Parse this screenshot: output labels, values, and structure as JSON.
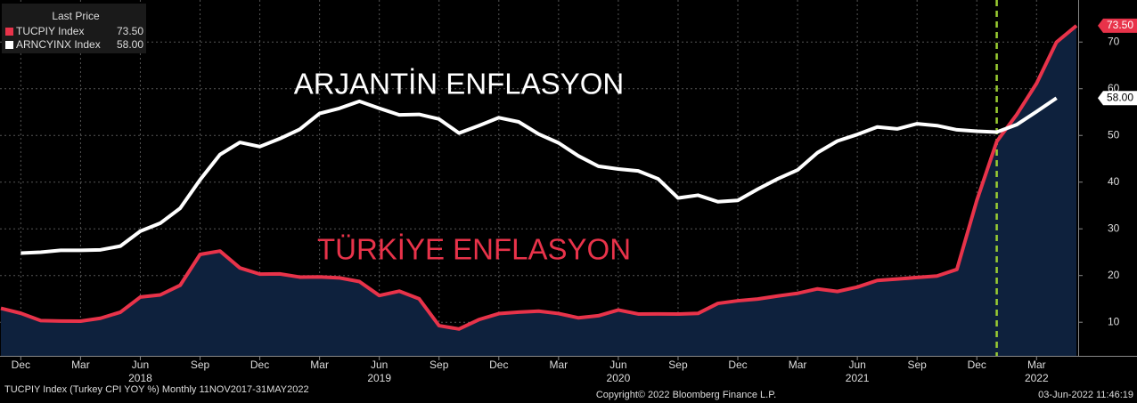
{
  "chart_data": {
    "type": "line",
    "x": [
      "2017-11",
      "2017-12",
      "2018-01",
      "2018-02",
      "2018-03",
      "2018-04",
      "2018-05",
      "2018-06",
      "2018-07",
      "2018-08",
      "2018-09",
      "2018-10",
      "2018-11",
      "2018-12",
      "2019-01",
      "2019-02",
      "2019-03",
      "2019-04",
      "2019-05",
      "2019-06",
      "2019-07",
      "2019-08",
      "2019-09",
      "2019-10",
      "2019-11",
      "2019-12",
      "2020-01",
      "2020-02",
      "2020-03",
      "2020-04",
      "2020-05",
      "2020-06",
      "2020-07",
      "2020-08",
      "2020-09",
      "2020-10",
      "2020-11",
      "2020-12",
      "2021-01",
      "2021-02",
      "2021-03",
      "2021-04",
      "2021-05",
      "2021-06",
      "2021-07",
      "2021-08",
      "2021-09",
      "2021-10",
      "2021-11",
      "2021-12",
      "2022-01",
      "2022-02",
      "2022-03",
      "2022-04",
      "2022-05"
    ],
    "series": [
      {
        "name": "TUCPIY Index",
        "last_value": "73.50",
        "color": "#e8334a",
        "area_color": "#0e213d",
        "values": [
          12.98,
          11.92,
          10.35,
          10.26,
          10.23,
          10.85,
          12.15,
          15.39,
          15.85,
          17.9,
          24.52,
          25.24,
          21.62,
          20.3,
          20.35,
          19.67,
          19.71,
          19.5,
          18.71,
          15.72,
          16.65,
          15.01,
          9.26,
          8.55,
          10.56,
          11.84,
          12.15,
          12.37,
          11.86,
          10.94,
          11.39,
          12.62,
          11.76,
          11.77,
          11.75,
          11.89,
          14.03,
          14.6,
          14.97,
          15.61,
          16.19,
          17.14,
          16.59,
          17.53,
          18.95,
          19.25,
          19.58,
          19.89,
          21.31,
          36.08,
          48.69,
          54.44,
          61.14,
          69.97,
          73.5
        ]
      },
      {
        "name": "ARNCYINX Index",
        "last_value": "58.00",
        "color": "#ffffff",
        "values": [
          null,
          24.8,
          25.0,
          25.4,
          25.4,
          25.5,
          26.3,
          29.5,
          31.2,
          34.4,
          40.5,
          45.9,
          48.5,
          47.6,
          49.3,
          51.3,
          54.7,
          55.8,
          57.3,
          55.8,
          54.4,
          54.5,
          53.5,
          50.5,
          52.1,
          53.8,
          52.9,
          50.3,
          48.4,
          45.6,
          43.4,
          42.8,
          42.4,
          40.7,
          36.6,
          37.2,
          35.8,
          36.1,
          38.5,
          40.7,
          42.6,
          46.3,
          48.8,
          50.2,
          51.8,
          51.4,
          52.5,
          52.1,
          51.2,
          50.9,
          50.7,
          52.3,
          55.1,
          58.0,
          null
        ]
      }
    ],
    "legend_title": "Last Price",
    "ylim": [
      2.8,
      79
    ],
    "yticks": [
      10,
      20,
      30,
      40,
      50,
      60,
      70
    ],
    "xticks": [
      {
        "value": "2017-12",
        "label": "Dec"
      },
      {
        "value": "2018-03",
        "label": "Mar"
      },
      {
        "value": "2018-06",
        "label": "Jun"
      },
      {
        "value": "2018-09",
        "label": "Sep"
      },
      {
        "value": "2018-12",
        "label": "Dec"
      },
      {
        "value": "2019-03",
        "label": "Mar"
      },
      {
        "value": "2019-06",
        "label": "Jun"
      },
      {
        "value": "2019-09",
        "label": "Sep"
      },
      {
        "value": "2019-12",
        "label": "Dec"
      },
      {
        "value": "2020-03",
        "label": "Mar"
      },
      {
        "value": "2020-06",
        "label": "Jun"
      },
      {
        "value": "2020-09",
        "label": "Sep"
      },
      {
        "value": "2020-12",
        "label": "Dec"
      },
      {
        "value": "2021-03",
        "label": "Mar"
      },
      {
        "value": "2021-06",
        "label": "Jun"
      },
      {
        "value": "2021-09",
        "label": "Sep"
      },
      {
        "value": "2021-12",
        "label": "Dec"
      },
      {
        "value": "2022-03",
        "label": "Mar"
      }
    ],
    "year_labels": [
      {
        "value": "2018-06",
        "label": "2018"
      },
      {
        "value": "2019-06",
        "label": "2019"
      },
      {
        "value": "2020-06",
        "label": "2020"
      },
      {
        "value": "2021-06",
        "label": "2021"
      },
      {
        "value": "2022-03",
        "label": "2022"
      }
    ],
    "marker_x": "2022-01",
    "marker_color": "#9acd32",
    "annotations": [
      {
        "text": "ARJANTİN ENFLASYON",
        "color": "#ffffff"
      },
      {
        "text": "TÜRKİYE ENFLASYON",
        "color": "#e8334a"
      }
    ],
    "grid": true,
    "footer_left": "TUCPIY Index (Turkey CPI YOY %)  Monthly 11NOV2017-31MAY2022",
    "footer_center": "Copyright© 2022 Bloomberg Finance L.P.",
    "footer_right": "03-Jun-2022 11:46:19"
  }
}
